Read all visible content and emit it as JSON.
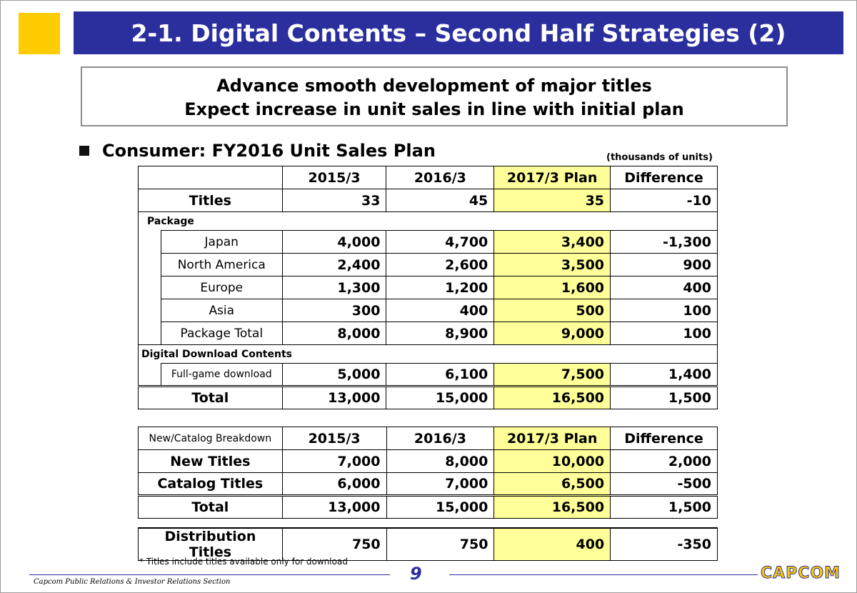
{
  "slide": {
    "title": "2-1. Digital Contents – Second Half Strategies (2)",
    "summary_line1": "Advance smooth development of major titles",
    "summary_line2": "Expect increase in unit sales in line with initial plan",
    "section_title": "Consumer: FY2016 Unit Sales Plan",
    "units_note": "(thousands of units)",
    "footnote": "* Titles include titles available only for download",
    "footer_text": "Capcom Public Relations & Investor Relations Section",
    "page_number": "9",
    "logo_text": "CAPCOM",
    "colors": {
      "title_bar": "#2b2f9e",
      "highlight": "#ffff99",
      "accent_yellow": "#ffcc00"
    }
  },
  "table1": {
    "headers": [
      "2015/3",
      "2016/3",
      "2017/3 Plan",
      "Difference"
    ],
    "titles": {
      "label": "Titles",
      "values": [
        "33",
        "45",
        "35",
        "-10"
      ]
    },
    "package_label": "Package",
    "package_rows": [
      {
        "label": "Japan",
        "values": [
          "4,000",
          "4,700",
          "3,400",
          "-1,300"
        ]
      },
      {
        "label": "North America",
        "values": [
          "2,400",
          "2,600",
          "3,500",
          "900"
        ]
      },
      {
        "label": "Europe",
        "values": [
          "1,300",
          "1,200",
          "1,600",
          "400"
        ]
      },
      {
        "label": "Asia",
        "values": [
          "300",
          "400",
          "500",
          "100"
        ]
      },
      {
        "label": "Package Total",
        "values": [
          "8,000",
          "8,900",
          "9,000",
          "100"
        ]
      }
    ],
    "digital_label": "Digital Download Contents",
    "digital_rows": [
      {
        "label": "Full-game download",
        "values": [
          "5,000",
          "6,100",
          "7,500",
          "1,400"
        ]
      }
    ],
    "total": {
      "label": "Total",
      "values": [
        "13,000",
        "15,000",
        "16,500",
        "1,500"
      ]
    }
  },
  "table2": {
    "header_label": "New/Catalog Breakdown",
    "headers": [
      "2015/3",
      "2016/3",
      "2017/3 Plan",
      "Difference"
    ],
    "rows": [
      {
        "label": "New Titles",
        "values": [
          "7,000",
          "8,000",
          "10,000",
          "2,000"
        ]
      },
      {
        "label": "Catalog Titles",
        "values": [
          "6,000",
          "7,000",
          "6,500",
          "-500"
        ]
      }
    ],
    "total": {
      "label": "Total",
      "values": [
        "13,000",
        "15,000",
        "16,500",
        "1,500"
      ]
    }
  },
  "table3": {
    "row": {
      "label": "Distribution Titles",
      "values": [
        "750",
        "750",
        "400",
        "-350"
      ]
    }
  }
}
